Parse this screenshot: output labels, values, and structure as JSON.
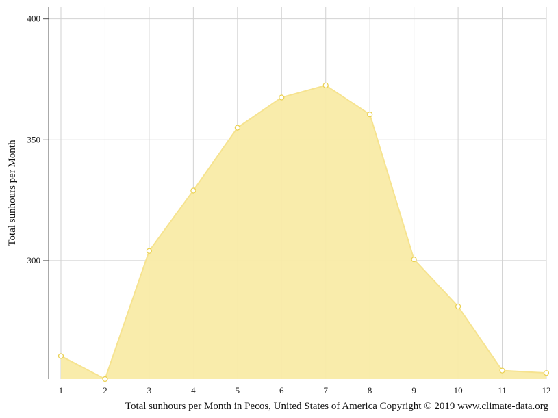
{
  "chart_data": {
    "type": "area",
    "title": "",
    "caption": "Total sunhours per Month in Pecos, United States of America Copyright © 2019 www.climate-data.org",
    "xlabel": "",
    "ylabel": "Total sunhours per Month",
    "x": [
      1,
      2,
      3,
      4,
      5,
      6,
      7,
      8,
      9,
      10,
      11,
      12
    ],
    "x_tick_labels": [
      "1",
      "2",
      "3",
      "4",
      "5",
      "6",
      "7",
      "8",
      "9",
      "10",
      "11",
      "12"
    ],
    "y_ticks": [
      300,
      350,
      400
    ],
    "y_tick_labels": [
      "300",
      "350",
      "400"
    ],
    "ylim": [
      251,
      405
    ],
    "series": [
      {
        "values": [
          260.5,
          251.0,
          304.0,
          329.0,
          355.0,
          367.5,
          372.5,
          360.5,
          300.5,
          281.0,
          254.5,
          253.5
        ]
      }
    ],
    "grid": true,
    "colors": {
      "fill": "#f9eba6",
      "line": "#f6e38f",
      "marker_fill": "#ffffff",
      "marker_stroke": "#ead04f",
      "grid": "#d2d2d2",
      "axis": "#555555"
    }
  }
}
